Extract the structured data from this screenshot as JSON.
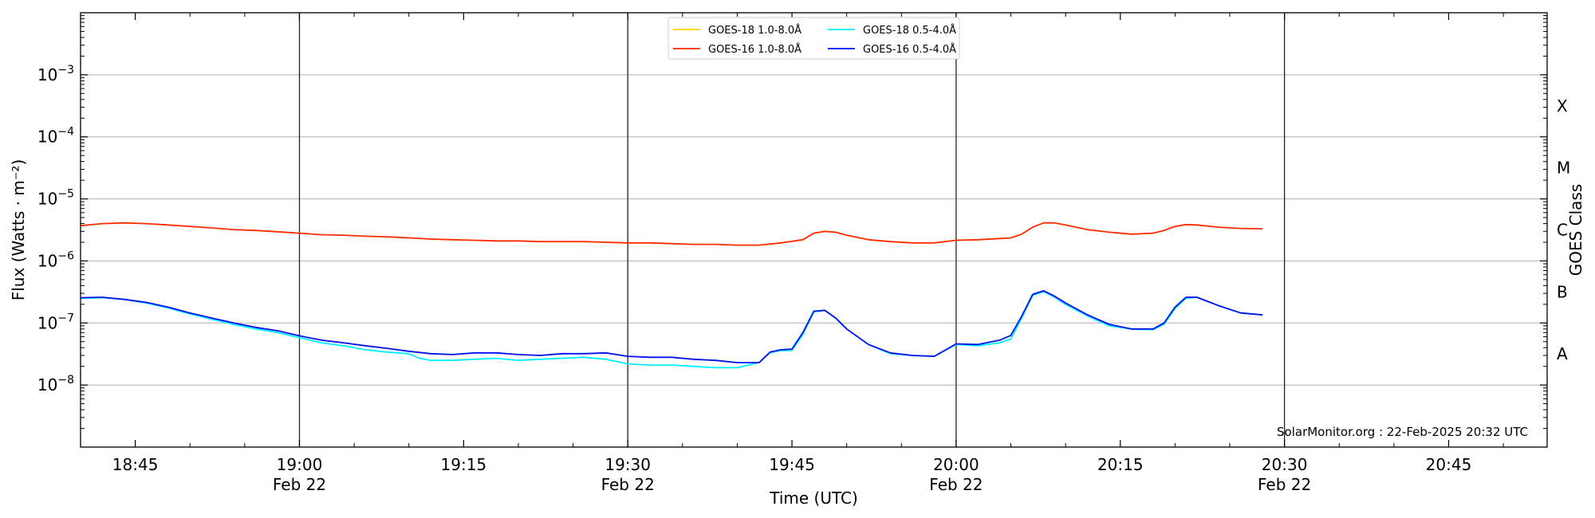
{
  "chart_data": {
    "type": "line",
    "title": "",
    "xlabel": "Time (UTC)",
    "ylabel": "Flux (Watts · m⁻²)",
    "y2label": "GOES Class",
    "yscale": "log",
    "ylim": [
      1e-09,
      0.01
    ],
    "xlim": [
      "18:40",
      "20:54"
    ],
    "grid": "horizontal",
    "legend_position": "top-center",
    "credit": "SolarMonitor.org : 22-Feb-2025 20:32 UTC",
    "x_ticks": [
      {
        "time": "18:45",
        "label": "18:45",
        "date": ""
      },
      {
        "time": "19:00",
        "label": "19:00",
        "date": "Feb 22"
      },
      {
        "time": "19:15",
        "label": "19:15",
        "date": ""
      },
      {
        "time": "19:30",
        "label": "19:30",
        "date": "Feb 22"
      },
      {
        "time": "19:45",
        "label": "19:45",
        "date": ""
      },
      {
        "time": "20:00",
        "label": "20:00",
        "date": "Feb 22"
      },
      {
        "time": "20:15",
        "label": "20:15",
        "date": ""
      },
      {
        "time": "20:30",
        "label": "20:30",
        "date": "Feb 22"
      },
      {
        "time": "20:45",
        "label": "20:45",
        "date": ""
      }
    ],
    "y_ticks": [
      {
        "value": 0.001,
        "base": "10",
        "exp": "−3"
      },
      {
        "value": 0.0001,
        "base": "10",
        "exp": "−4"
      },
      {
        "value": 1e-05,
        "base": "10",
        "exp": "−5"
      },
      {
        "value": 1e-06,
        "base": "10",
        "exp": "−6"
      },
      {
        "value": 1e-07,
        "base": "10",
        "exp": "−7"
      },
      {
        "value": 1e-08,
        "base": "10",
        "exp": "−8"
      }
    ],
    "goes_classes": [
      {
        "label": "X",
        "value": 0.000316
      },
      {
        "label": "M",
        "value": 3.16e-05
      },
      {
        "label": "C",
        "value": 3.16e-06
      },
      {
        "label": "B",
        "value": 3.16e-07
      },
      {
        "label": "A",
        "value": 3.16e-08
      }
    ],
    "day_lines": [
      "19:00",
      "19:30",
      "20:00",
      "20:30"
    ],
    "series": [
      {
        "name": "GOES-18 1.0-8.0Å",
        "color": "#ffd700",
        "x": [],
        "y": []
      },
      {
        "name": "GOES-16 1.0-8.0Å",
        "color": "#ff2a00",
        "x": [
          "18:40",
          "18:42",
          "18:44",
          "18:46",
          "18:48",
          "18:50",
          "18:52",
          "18:54",
          "18:56",
          "18:58",
          "19:00",
          "19:02",
          "19:04",
          "19:06",
          "19:08",
          "19:10",
          "19:12",
          "19:14",
          "19:16",
          "19:18",
          "19:20",
          "19:22",
          "19:24",
          "19:26",
          "19:28",
          "19:30",
          "19:32",
          "19:34",
          "19:36",
          "19:38",
          "19:40",
          "19:42",
          "19:44",
          "19:46",
          "19:47",
          "19:48",
          "19:49",
          "19:50",
          "19:52",
          "19:54",
          "19:56",
          "19:58",
          "20:00",
          "20:02",
          "20:04",
          "20:05",
          "20:06",
          "20:07",
          "20:08",
          "20:09",
          "20:10",
          "20:12",
          "20:14",
          "20:16",
          "20:18",
          "20:19",
          "20:20",
          "20:21",
          "20:22",
          "20:24",
          "20:26",
          "20:28"
        ],
        "y": [
          3.7e-06,
          4e-06,
          4.1e-06,
          4e-06,
          3.8e-06,
          3.6e-06,
          3.4e-06,
          3.2e-06,
          3.1e-06,
          2.95e-06,
          2.8e-06,
          2.65e-06,
          2.6e-06,
          2.5e-06,
          2.45e-06,
          2.35e-06,
          2.25e-06,
          2.2e-06,
          2.15e-06,
          2.1e-06,
          2.1e-06,
          2.05e-06,
          2.05e-06,
          2.05e-06,
          2e-06,
          1.95e-06,
          1.95e-06,
          1.9e-06,
          1.85e-06,
          1.85e-06,
          1.8e-06,
          1.8e-06,
          1.95e-06,
          2.2e-06,
          2.8e-06,
          3e-06,
          2.9e-06,
          2.6e-06,
          2.2e-06,
          2.05e-06,
          1.95e-06,
          1.95e-06,
          2.15e-06,
          2.2e-06,
          2.3e-06,
          2.35e-06,
          2.7e-06,
          3.5e-06,
          4.1e-06,
          4.1e-06,
          3.8e-06,
          3.2e-06,
          2.9e-06,
          2.7e-06,
          2.8e-06,
          3.1e-06,
          3.6e-06,
          3.85e-06,
          3.8e-06,
          3.5e-06,
          3.35e-06,
          3.3e-06
        ]
      },
      {
        "name": "GOES-18 0.5-4.0Å",
        "color": "#00eeff",
        "x": [
          "18:40",
          "18:42",
          "18:44",
          "18:46",
          "18:48",
          "18:50",
          "18:52",
          "18:54",
          "18:56",
          "18:58",
          "19:00",
          "19:02",
          "19:04",
          "19:06",
          "19:08",
          "19:10",
          "19:11",
          "19:12",
          "19:14",
          "19:16",
          "19:18",
          "19:20",
          "19:22",
          "19:24",
          "19:26",
          "19:28",
          "19:30",
          "19:32",
          "19:34",
          "19:36",
          "19:38",
          "19:40",
          "19:42",
          "19:43",
          "19:44",
          "19:45",
          "19:46",
          "19:47",
          "19:48",
          "19:49",
          "19:50",
          "19:52",
          "19:54",
          "19:56",
          "19:58",
          "20:00",
          "20:02",
          "20:04",
          "20:05",
          "20:06",
          "20:07",
          "20:08",
          "20:09",
          "20:10",
          "20:12",
          "20:14",
          "20:16",
          "20:18",
          "20:19",
          "20:20",
          "20:21",
          "20:22",
          "20:24",
          "20:26",
          "20:28"
        ],
        "y": [
          2.5e-07,
          2.55e-07,
          2.4e-07,
          2.1e-07,
          1.75e-07,
          1.4e-07,
          1.15e-07,
          9.5e-08,
          8e-08,
          7e-08,
          5.8e-08,
          4.8e-08,
          4.3e-08,
          3.7e-08,
          3.4e-08,
          3.2e-08,
          2.7e-08,
          2.5e-08,
          2.5e-08,
          2.6e-08,
          2.7e-08,
          2.5e-08,
          2.6e-08,
          2.7e-08,
          2.8e-08,
          2.6e-08,
          2.2e-08,
          2.1e-08,
          2.1e-08,
          2e-08,
          1.9e-08,
          1.9e-08,
          2.3e-08,
          3.3e-08,
          3.6e-08,
          3.6e-08,
          6.5e-08,
          1.5e-07,
          1.6e-07,
          1.2e-07,
          8e-08,
          4.5e-08,
          3.2e-08,
          3e-08,
          2.9e-08,
          4.5e-08,
          4.3e-08,
          4.8e-08,
          5.5e-08,
          1.2e-07,
          2.8e-07,
          3.2e-07,
          2.6e-07,
          2e-07,
          1.3e-07,
          9e-08,
          8e-08,
          7.8e-08,
          9.5e-08,
          1.7e-07,
          2.5e-07,
          2.6e-07,
          1.9e-07,
          1.45e-07,
          1.35e-07
        ]
      },
      {
        "name": "GOES-16 0.5-4.0Å",
        "color": "#0011ee",
        "x": [
          "18:40",
          "18:42",
          "18:44",
          "18:46",
          "18:48",
          "18:50",
          "18:52",
          "18:54",
          "18:56",
          "18:58",
          "19:00",
          "19:02",
          "19:04",
          "19:06",
          "19:08",
          "19:10",
          "19:12",
          "19:14",
          "19:16",
          "19:18",
          "19:20",
          "19:22",
          "19:24",
          "19:26",
          "19:28",
          "19:30",
          "19:32",
          "19:34",
          "19:36",
          "19:38",
          "19:40",
          "19:42",
          "19:43",
          "19:44",
          "19:45",
          "19:46",
          "19:47",
          "19:48",
          "19:49",
          "19:50",
          "19:52",
          "19:54",
          "19:56",
          "19:58",
          "20:00",
          "20:02",
          "20:04",
          "20:05",
          "20:06",
          "20:07",
          "20:08",
          "20:09",
          "20:10",
          "20:12",
          "20:14",
          "20:16",
          "20:18",
          "20:19",
          "20:20",
          "20:21",
          "20:22",
          "20:24",
          "20:26",
          "20:28"
        ],
        "y": [
          2.55e-07,
          2.6e-07,
          2.4e-07,
          2.15e-07,
          1.8e-07,
          1.45e-07,
          1.2e-07,
          1e-07,
          8.5e-08,
          7.5e-08,
          6.2e-08,
          5.3e-08,
          4.8e-08,
          4.3e-08,
          3.9e-08,
          3.5e-08,
          3.2e-08,
          3.1e-08,
          3.3e-08,
          3.3e-08,
          3.1e-08,
          3e-08,
          3.2e-08,
          3.2e-08,
          3.3e-08,
          2.9e-08,
          2.8e-08,
          2.8e-08,
          2.6e-08,
          2.5e-08,
          2.3e-08,
          2.3e-08,
          3.4e-08,
          3.7e-08,
          3.8e-08,
          7e-08,
          1.55e-07,
          1.6e-07,
          1.2e-07,
          8e-08,
          4.5e-08,
          3.3e-08,
          3e-08,
          2.9e-08,
          4.6e-08,
          4.5e-08,
          5.3e-08,
          6.3e-08,
          1.3e-07,
          2.9e-07,
          3.3e-07,
          2.7e-07,
          2.1e-07,
          1.35e-07,
          9.5e-08,
          8e-08,
          8e-08,
          1e-07,
          1.8e-07,
          2.6e-07,
          2.6e-07,
          1.9e-07,
          1.45e-07,
          1.35e-07
        ]
      }
    ]
  }
}
